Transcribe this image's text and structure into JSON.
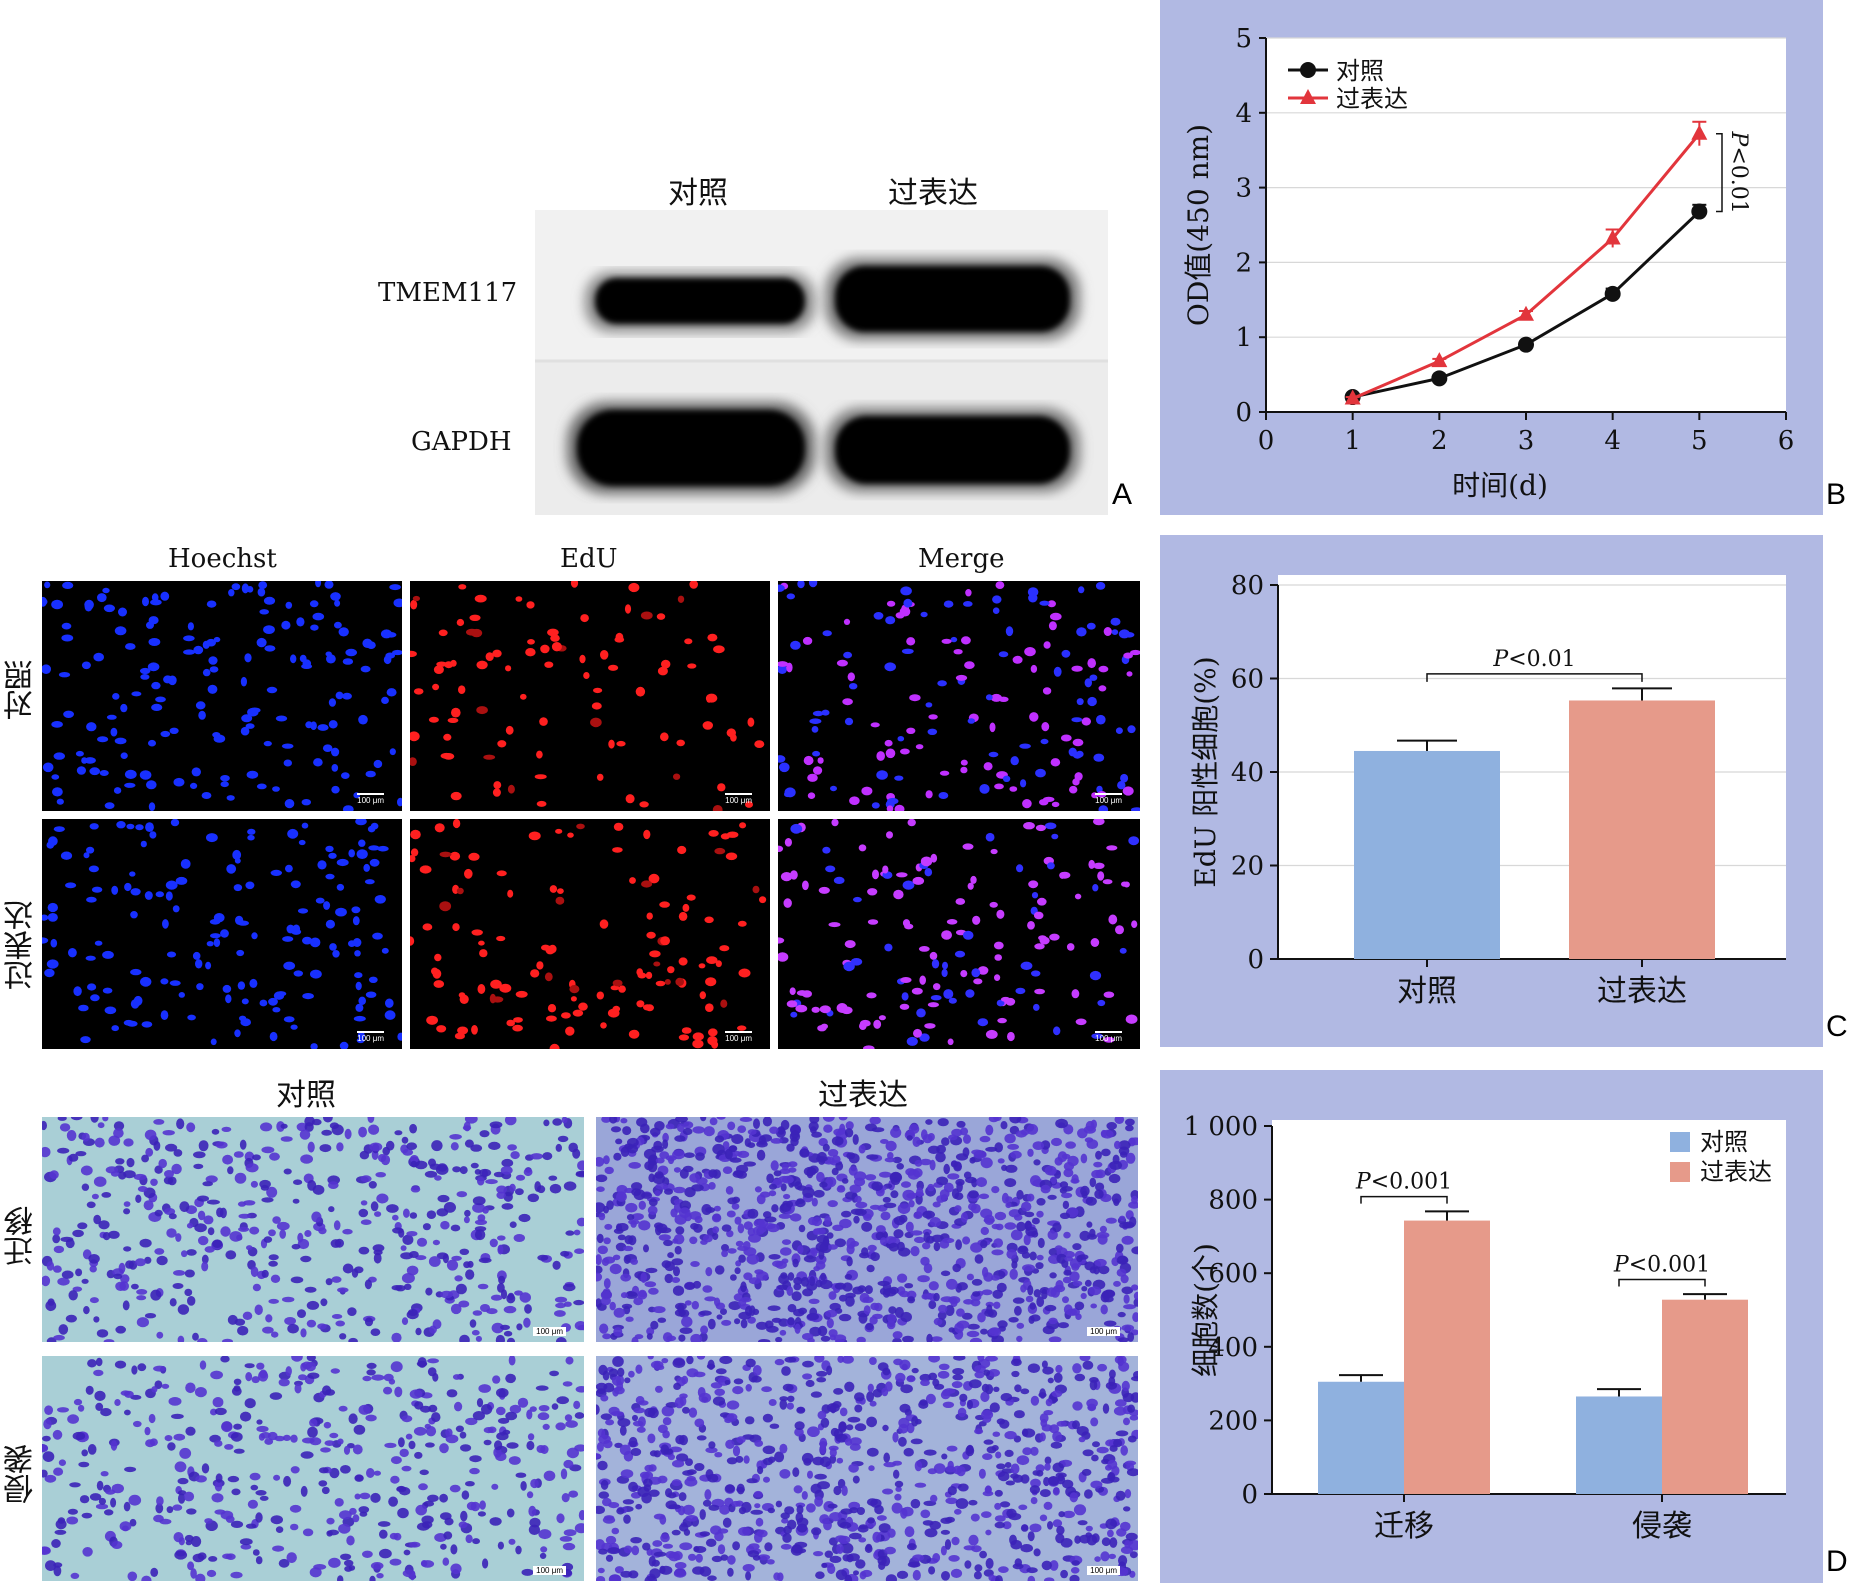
{
  "panel_letters": [
    "A",
    "B",
    "C",
    "D"
  ],
  "panelA": {
    "lanes": [
      "对照",
      "过表达"
    ],
    "rows": [
      "TMEM117",
      "GAPDH"
    ]
  },
  "panelB": {
    "legend": [
      "对照",
      "过表达"
    ],
    "pvalue": "P<0.01"
  },
  "panelC_images": {
    "columns": [
      "Hoechst",
      "EdU",
      "Merge"
    ],
    "rows": [
      "对照",
      "过表达"
    ],
    "scale_text": "100 μm"
  },
  "panelD_images": {
    "columns": [
      "对照",
      "过表达"
    ],
    "rows": [
      "迁移",
      "侵袭"
    ],
    "scale_text": "100 μm"
  },
  "colors": {
    "panel_bg": "#b1b9e3",
    "control_line": "#111111",
    "overexp_line": "#e2353c",
    "control_bar": "#8fb1df",
    "overexp_bar": "#e69a8a"
  },
  "chart_data": [
    {
      "type": "line",
      "xlabel": "时间(d)",
      "ylabel": "OD值(450 nm)",
      "xlim": [
        0,
        6
      ],
      "ylim": [
        0,
        5
      ],
      "xticks": [
        "0",
        "1",
        "2",
        "3",
        "4",
        "5",
        "6"
      ],
      "yticks": [
        "0",
        "1",
        "2",
        "3",
        "4",
        "5"
      ],
      "grid": true,
      "legend": "top-left",
      "x": [
        1,
        2,
        3,
        4,
        5
      ],
      "series": [
        {
          "name": "对照",
          "values": [
            0.2,
            0.45,
            0.9,
            1.58,
            2.68
          ],
          "errors": [
            0.02,
            0.03,
            0.04,
            0.07,
            0.09
          ],
          "marker": "circle",
          "color": "#111111"
        },
        {
          "name": "过表达",
          "values": [
            0.18,
            0.68,
            1.3,
            2.32,
            3.72
          ],
          "errors": [
            0.02,
            0.03,
            0.05,
            0.12,
            0.16
          ],
          "marker": "triangle",
          "color": "#e2353c"
        }
      ],
      "annotation": "P<0.01"
    },
    {
      "type": "bar",
      "categories": [
        "对照",
        "过表达"
      ],
      "values": [
        44.5,
        55.3
      ],
      "errors": [
        2.2,
        2.6
      ],
      "ylabel": "EdU 阳性细胞(%)",
      "ylim": [
        0,
        80
      ],
      "yticks": [
        "0",
        "20",
        "40",
        "60",
        "80"
      ],
      "grid": true,
      "annotation": "P<0.01"
    },
    {
      "type": "bar",
      "categories": [
        "迁移",
        "侵袭"
      ],
      "series": [
        {
          "name": "对照",
          "values": [
            305,
            265
          ],
          "errors": [
            18,
            20
          ]
        },
        {
          "name": "过表达",
          "values": [
            743,
            528
          ],
          "errors": [
            25,
            15
          ]
        }
      ],
      "ylabel": "细胞数(个)",
      "ylim": [
        0,
        1000
      ],
      "yticks": [
        "0",
        "200",
        "400",
        "600",
        "800",
        "1 000"
      ],
      "legend": "top-right",
      "annotations": [
        "P<0.001",
        "P<0.001"
      ]
    }
  ]
}
